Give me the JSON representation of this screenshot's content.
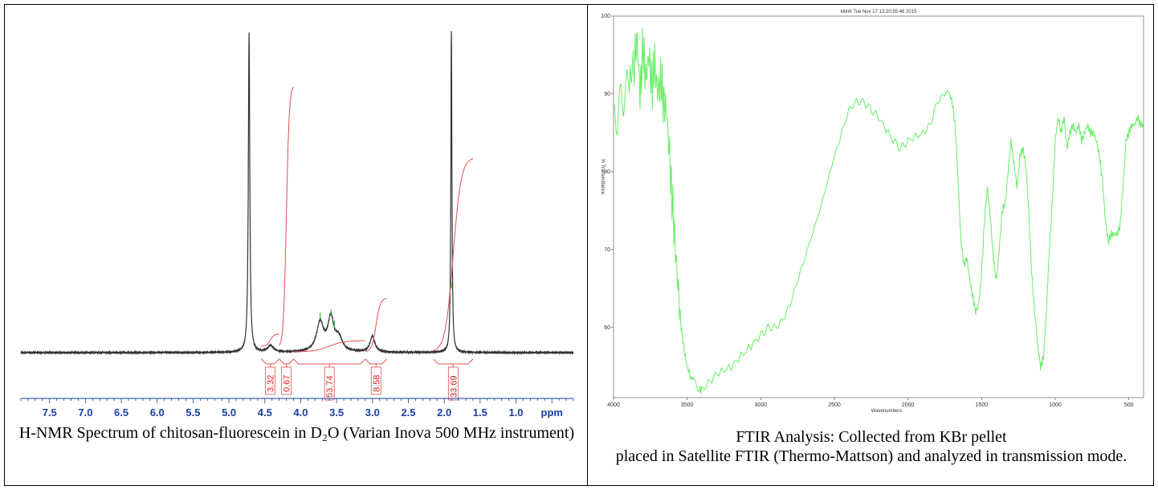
{
  "figure": {
    "nmr_caption": "H-NMR Spectrum of chitosan-fluorescein in D₂O (Varian Inova 500 MHz instrument)",
    "ftir_caption_line1": "FTIR Analysis: Collected from KBr pellet",
    "ftir_caption_line2": "placed in Satellite FTIR (Thermo-Mattson) and analyzed in transmission mode."
  },
  "chart_data": [
    {
      "type": "line",
      "subtype": "nmr-spectrum",
      "xlabel": "ppm",
      "x_reversed": true,
      "xlim": [
        7.9,
        0.2
      ],
      "x_ticks": [
        7.5,
        7.0,
        6.5,
        6.0,
        5.5,
        5.0,
        4.5,
        4.0,
        3.5,
        3.0,
        2.5,
        2.0,
        1.5,
        1.0
      ],
      "x_tick_labels": [
        "7.5",
        "7.0",
        "6.5",
        "6.0",
        "5.5",
        "5.0",
        "4.5",
        "4.0",
        "3.5",
        "3.0",
        "2.5",
        "2.0",
        "1.5",
        "1.0"
      ],
      "peaks": [
        {
          "ppm": 4.72,
          "height": 1.0,
          "width": 0.012
        },
        {
          "ppm": 4.42,
          "height": 0.02,
          "width": 0.05
        },
        {
          "ppm": 3.73,
          "height": 0.09,
          "width": 0.06
        },
        {
          "ppm": 3.58,
          "height": 0.1,
          "width": 0.05
        },
        {
          "ppm": 3.47,
          "height": 0.04,
          "width": 0.06
        },
        {
          "ppm": 3.0,
          "height": 0.05,
          "width": 0.04
        },
        {
          "ppm": 1.9,
          "height": 1.0,
          "width": 0.009
        }
      ],
      "integrals": [
        {
          "label": "3.32",
          "from": 4.55,
          "to": 4.3
        },
        {
          "label": "0.67",
          "from": 4.3,
          "to": 4.1
        },
        {
          "label": "53.74",
          "from": 4.1,
          "to": 3.1
        },
        {
          "label": "8.58",
          "from": 3.1,
          "to": 2.8
        },
        {
          "label": "33.69",
          "from": 2.15,
          "to": 1.6
        }
      ],
      "line_color": "#333333",
      "integral_color": "#e05050"
    },
    {
      "type": "line",
      "subtype": "ftir-spectrum",
      "title": "kitin8   Tue Nov 17 13:20:55:46 2015",
      "xlabel": "Wavenumbers",
      "ylabel": "% Transmittance",
      "x_reversed": true,
      "xlim": [
        4000,
        400
      ],
      "ylim": [
        51,
        100
      ],
      "x_ticks": [
        4000,
        3500,
        3000,
        2500,
        2000,
        1500,
        1000,
        500
      ],
      "y_ticks": [
        60,
        70,
        80,
        90,
        100
      ],
      "x": [
        4000,
        3950,
        3900,
        3860,
        3840,
        3820,
        3800,
        3780,
        3760,
        3740,
        3720,
        3700,
        3680,
        3660,
        3640,
        3620,
        3600,
        3580,
        3560,
        3540,
        3520,
        3500,
        3480,
        3450,
        3420,
        3400,
        3350,
        3300,
        3200,
        3100,
        3000,
        2950,
        2900,
        2850,
        2800,
        2750,
        2700,
        2600,
        2500,
        2450,
        2400,
        2350,
        2300,
        2250,
        2200,
        2100,
        2050,
        2000,
        1900,
        1850,
        1800,
        1750,
        1720,
        1700,
        1680,
        1660,
        1640,
        1620,
        1600,
        1580,
        1560,
        1540,
        1520,
        1500,
        1480,
        1460,
        1440,
        1420,
        1400,
        1380,
        1360,
        1340,
        1320,
        1300,
        1280,
        1260,
        1240,
        1220,
        1200,
        1180,
        1160,
        1140,
        1120,
        1100,
        1080,
        1060,
        1040,
        1020,
        1000,
        980,
        960,
        940,
        920,
        900,
        880,
        860,
        840,
        820,
        800,
        780,
        760,
        740,
        720,
        700,
        680,
        660,
        640,
        620,
        600,
        580,
        560,
        540,
        520,
        500,
        480,
        460,
        440,
        420,
        400
      ],
      "y": [
        86,
        89,
        91,
        94,
        97,
        90,
        96,
        92,
        95,
        91,
        94,
        90,
        92,
        89,
        88,
        82,
        76,
        70,
        65,
        60,
        57,
        55,
        54,
        53,
        52,
        52,
        53,
        54,
        55,
        57,
        59,
        60,
        60,
        61,
        63,
        66,
        69,
        75,
        82,
        85,
        88,
        89,
        89,
        88,
        87,
        84,
        83,
        84,
        85,
        86,
        89,
        90,
        90,
        89,
        86,
        79,
        71,
        68,
        69,
        66,
        64,
        62,
        63,
        67,
        74,
        78,
        74,
        69,
        66,
        70,
        75,
        76,
        80,
        84,
        81,
        78,
        82,
        83,
        81,
        75,
        67,
        62,
        58,
        55,
        56,
        62,
        70,
        76,
        84,
        87,
        85,
        87,
        83,
        85,
        86,
        85,
        86,
        84,
        85,
        86,
        85,
        85,
        84,
        82,
        79,
        74,
        71,
        72,
        72,
        72,
        73,
        78,
        84,
        85,
        86,
        86,
        87,
        86,
        86
      ],
      "line_color": "#66ee66"
    }
  ]
}
